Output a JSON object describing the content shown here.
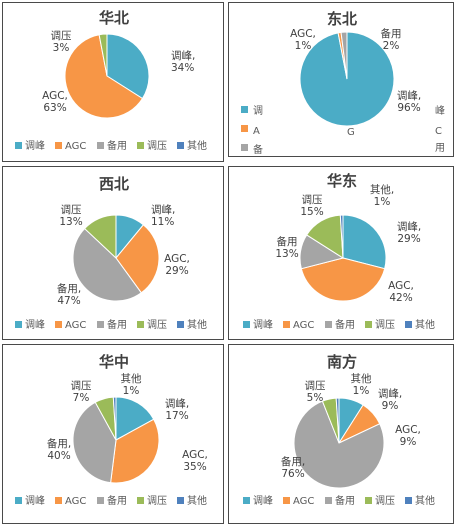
{
  "legend_labels": [
    "调峰",
    "AGC",
    "备用",
    "调压",
    "其他"
  ],
  "colors": {
    "调峰": "#4bacc6",
    "AGC": "#f79646",
    "备用": "#a5a5a5",
    "调压": "#9bbb59",
    "其他": "#4f81bd"
  },
  "chart_data": [
    {
      "type": "pie",
      "title": "华北",
      "categories": [
        "调峰",
        "AGC",
        "备用",
        "调压",
        "其他"
      ],
      "values": [
        34,
        63,
        0,
        3,
        0
      ],
      "data_labels": [
        "调峰,\n34%",
        "AGC,\n63%",
        "",
        "调压\n3%",
        ""
      ],
      "legend": "bottom"
    },
    {
      "type": "pie",
      "title": "东北",
      "categories": [
        "调峰",
        "AGC",
        "备用",
        "调压",
        "其他"
      ],
      "values": [
        96,
        1,
        2,
        0,
        0
      ],
      "data_labels": [
        "调峰,\n96%",
        "AGC,\n1%",
        "备用\n2%",
        "",
        ""
      ],
      "legend": "bottom (truncated)",
      "legend_fragments": [
        "调",
        "峰",
        "A",
        "G",
        "C",
        "备",
        "用"
      ]
    },
    {
      "type": "pie",
      "title": "西北",
      "categories": [
        "调峰",
        "AGC",
        "备用",
        "调压",
        "其他"
      ],
      "values": [
        11,
        29,
        47,
        13,
        0
      ],
      "data_labels": [
        "调峰,\n11%",
        "AGC,\n29%",
        "备用,\n47%",
        "调压\n13%",
        ""
      ],
      "legend": "bottom"
    },
    {
      "type": "pie",
      "title": "华东",
      "categories": [
        "调峰",
        "AGC",
        "备用",
        "调压",
        "其他"
      ],
      "values": [
        29,
        42,
        13,
        15,
        1
      ],
      "data_labels": [
        "调峰,\n29%",
        "AGC,\n42%",
        "备用\n13%",
        "调压\n15%",
        "其他,\n1%"
      ],
      "legend": "bottom"
    },
    {
      "type": "pie",
      "title": "华中",
      "categories": [
        "调峰",
        "AGC",
        "备用",
        "调压",
        "其他"
      ],
      "values": [
        17,
        35,
        40,
        7,
        1
      ],
      "data_labels": [
        "调峰,\n17%",
        "AGC,\n35%",
        "备用,\n40%",
        "调压\n7%",
        "其他\n1%"
      ],
      "legend": "bottom"
    },
    {
      "type": "pie",
      "title": "南方",
      "categories": [
        "调峰",
        "AGC",
        "备用",
        "调压",
        "其他"
      ],
      "values": [
        9,
        9,
        76,
        5,
        1
      ],
      "data_labels": [
        "调峰,\n9%",
        "AGC,\n9%",
        "备用,\n76%",
        "调压\n5%",
        "其他\n1%"
      ],
      "legend": "bottom"
    }
  ]
}
